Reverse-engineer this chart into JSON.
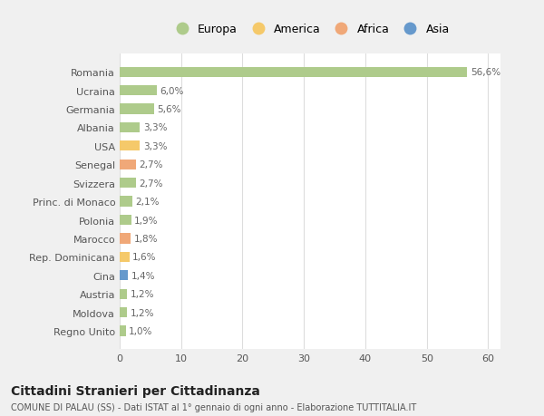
{
  "countries": [
    "Romania",
    "Ucraina",
    "Germania",
    "Albania",
    "USA",
    "Senegal",
    "Svizzera",
    "Princ. di Monaco",
    "Polonia",
    "Marocco",
    "Rep. Dominicana",
    "Cina",
    "Austria",
    "Moldova",
    "Regno Unito"
  ],
  "values": [
    56.6,
    6.0,
    5.6,
    3.3,
    3.3,
    2.7,
    2.7,
    2.1,
    1.9,
    1.8,
    1.6,
    1.4,
    1.2,
    1.2,
    1.0
  ],
  "labels": [
    "56,6%",
    "6,0%",
    "5,6%",
    "3,3%",
    "3,3%",
    "2,7%",
    "2,7%",
    "2,1%",
    "1,9%",
    "1,8%",
    "1,6%",
    "1,4%",
    "1,2%",
    "1,2%",
    "1,0%"
  ],
  "continents": [
    "Europa",
    "Europa",
    "Europa",
    "Europa",
    "America",
    "Africa",
    "Europa",
    "Europa",
    "Europa",
    "Africa",
    "America",
    "Asia",
    "Europa",
    "Europa",
    "Europa"
  ],
  "colors": {
    "Europa": "#aecb8b",
    "America": "#f5c96a",
    "Africa": "#f0a878",
    "Asia": "#6699cc"
  },
  "xlim": [
    0,
    62
  ],
  "xticks": [
    0,
    10,
    20,
    30,
    40,
    50,
    60
  ],
  "title": "Cittadini Stranieri per Cittadinanza",
  "subtitle": "COMUNE DI PALAU (SS) - Dati ISTAT al 1° gennaio di ogni anno - Elaborazione TUTTITALIA.IT",
  "bg_color": "#f0f0f0",
  "plot_bg_color": "#ffffff",
  "grid_color": "#dddddd",
  "text_color": "#555555",
  "label_text_color": "#666666"
}
